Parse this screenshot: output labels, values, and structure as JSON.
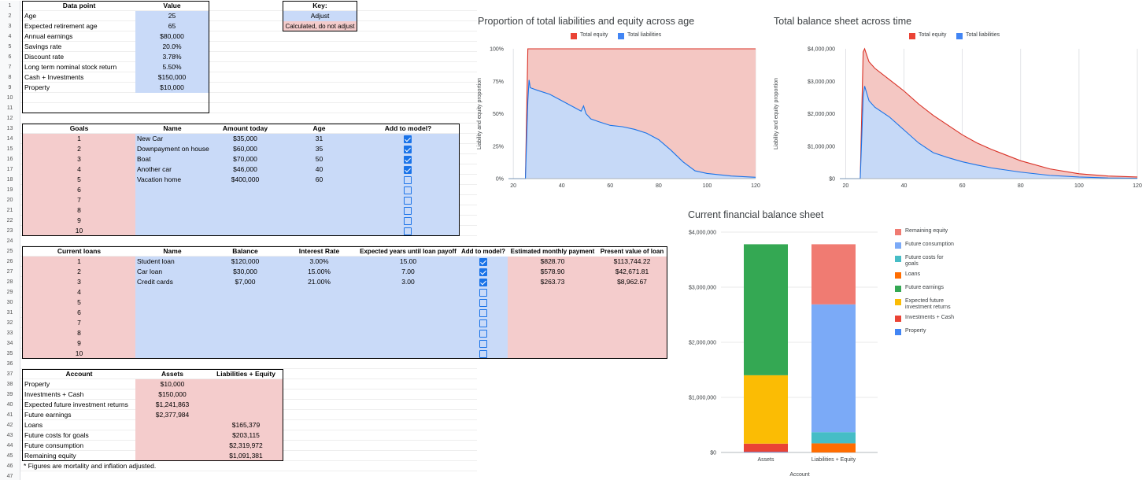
{
  "row_numbers": [
    "1",
    "2",
    "3",
    "4",
    "5",
    "6",
    "7",
    "8",
    "9",
    "10",
    "11",
    "12",
    "13",
    "14",
    "15",
    "16",
    "17",
    "18",
    "19",
    "20",
    "21",
    "22",
    "23",
    "24",
    "25",
    "26",
    "27",
    "28",
    "29",
    "30",
    "31",
    "32",
    "33",
    "34",
    "35",
    "36",
    "37",
    "38",
    "39",
    "40",
    "41",
    "42",
    "43",
    "44",
    "45",
    "46",
    "47"
  ],
  "inputs": {
    "header_point": "Data point",
    "header_value": "Value",
    "rows": [
      {
        "label": "Age",
        "value": "25"
      },
      {
        "label": "Expected retirement age",
        "value": "65"
      },
      {
        "label": "Annual earnings",
        "value": "$80,000"
      },
      {
        "label": "Savings rate",
        "value": "20.0%"
      },
      {
        "label": "Discount rate",
        "value": "3.78%"
      },
      {
        "label": "Long term nominal stock return",
        "value": "5.50%"
      },
      {
        "label": "Cash + Investments",
        "value": "$150,000"
      },
      {
        "label": "Property",
        "value": "$10,000"
      }
    ]
  },
  "key": {
    "title": "Key:",
    "adjust": "Adjust",
    "calculated": "Calculated, do not adjust"
  },
  "goals": {
    "headers": [
      "Goals",
      "Name",
      "Amount today",
      "Age",
      "Add to model?"
    ],
    "rows": [
      {
        "n": "1",
        "name": "New Car",
        "amount": "$35,000",
        "age": "31",
        "checked": true
      },
      {
        "n": "2",
        "name": "Downpayment on house",
        "amount": "$60,000",
        "age": "35",
        "checked": true
      },
      {
        "n": "3",
        "name": "Boat",
        "amount": "$70,000",
        "age": "50",
        "checked": true
      },
      {
        "n": "4",
        "name": "Another car",
        "amount": "$46,000",
        "age": "40",
        "checked": true
      },
      {
        "n": "5",
        "name": "Vacation home",
        "amount": "$400,000",
        "age": "60",
        "checked": false
      },
      {
        "n": "6",
        "name": "",
        "amount": "",
        "age": "",
        "checked": false
      },
      {
        "n": "7",
        "name": "",
        "amount": "",
        "age": "",
        "checked": false
      },
      {
        "n": "8",
        "name": "",
        "amount": "",
        "age": "",
        "checked": false
      },
      {
        "n": "9",
        "name": "",
        "amount": "",
        "age": "",
        "checked": false
      },
      {
        "n": "10",
        "name": "",
        "amount": "",
        "age": "",
        "checked": false
      }
    ]
  },
  "loans": {
    "headers": [
      "Current loans",
      "Name",
      "Balance",
      "Interest Rate",
      "Expected years until loan payoff",
      "Add to model?",
      "Estimated monthly payment",
      "Present value of loan"
    ],
    "rows": [
      {
        "n": "1",
        "name": "Student loan",
        "balance": "$120,000",
        "rate": "3.00%",
        "years": "15.00",
        "checked": true,
        "monthly": "$828.70",
        "pv": "$113,744.22"
      },
      {
        "n": "2",
        "name": "Car loan",
        "balance": "$30,000",
        "rate": "15.00%",
        "years": "7.00",
        "checked": true,
        "monthly": "$578.90",
        "pv": "$42,671.81"
      },
      {
        "n": "3",
        "name": "Credit cards",
        "balance": "$7,000",
        "rate": "21.00%",
        "years": "3.00",
        "checked": true,
        "monthly": "$263.73",
        "pv": "$8,962.67"
      },
      {
        "n": "4",
        "name": "",
        "balance": "",
        "rate": "",
        "years": "",
        "checked": false,
        "monthly": "",
        "pv": ""
      },
      {
        "n": "5",
        "name": "",
        "balance": "",
        "rate": "",
        "years": "",
        "checked": false,
        "monthly": "",
        "pv": ""
      },
      {
        "n": "6",
        "name": "",
        "balance": "",
        "rate": "",
        "years": "",
        "checked": false,
        "monthly": "",
        "pv": ""
      },
      {
        "n": "7",
        "name": "",
        "balance": "",
        "rate": "",
        "years": "",
        "checked": false,
        "monthly": "",
        "pv": ""
      },
      {
        "n": "8",
        "name": "",
        "balance": "",
        "rate": "",
        "years": "",
        "checked": false,
        "monthly": "",
        "pv": ""
      },
      {
        "n": "9",
        "name": "",
        "balance": "",
        "rate": "",
        "years": "",
        "checked": false,
        "monthly": "",
        "pv": ""
      },
      {
        "n": "10",
        "name": "",
        "balance": "",
        "rate": "",
        "years": "",
        "checked": false,
        "monthly": "",
        "pv": ""
      }
    ]
  },
  "balance": {
    "headers": [
      "Account",
      "Assets",
      "Liabilities + Equity"
    ],
    "rows": [
      {
        "account": "Property",
        "assets": "$10,000",
        "liab": ""
      },
      {
        "account": "Investments + Cash",
        "assets": "$150,000",
        "liab": ""
      },
      {
        "account": "Expected future investment returns",
        "assets": "$1,241,863",
        "liab": ""
      },
      {
        "account": "Future earnings",
        "assets": "$2,377,984",
        "liab": ""
      },
      {
        "account": "Loans",
        "assets": "",
        "liab": "$165,379"
      },
      {
        "account": "Future costs for goals",
        "assets": "",
        "liab": "$203,115"
      },
      {
        "account": "Future consumption",
        "assets": "",
        "liab": "$2,319,972"
      },
      {
        "account": "Remaining equity",
        "assets": "",
        "liab": "$1,091,381"
      }
    ],
    "footnote": "* Figures are mortality and inflation adjusted."
  },
  "colors": {
    "equity_red": "#f4c7c3",
    "liab_blue": "#c6d9f7",
    "line_red": "#d93025",
    "line_blue": "#1a73e8"
  },
  "chart_data": [
    {
      "type": "area",
      "title": "Proportion of total liabilities and equity across age",
      "ylabel": "Liability and equity proportion",
      "xlabel": "",
      "x_ticks": [
        "20",
        "40",
        "60",
        "80",
        "100",
        "120"
      ],
      "y_ticks": [
        "0%",
        "25%",
        "50%",
        "75%",
        "100%"
      ],
      "xlim": [
        18,
        120
      ],
      "ylim": [
        0,
        1
      ],
      "legend_position": "top",
      "series": [
        {
          "name": "Total equity",
          "color": "#d93025",
          "x": [
            18,
            25,
            26,
            120
          ],
          "y": [
            0,
            0,
            1,
            1
          ]
        },
        {
          "name": "Total liabilities",
          "color": "#4285f4",
          "x": [
            18,
            25,
            26,
            26.5,
            27,
            30,
            35,
            40,
            45,
            48,
            49,
            50,
            51,
            52,
            55,
            60,
            65,
            70,
            75,
            80,
            85,
            90,
            95,
            100,
            110,
            120
          ],
          "y": [
            0,
            0,
            0.6,
            0.76,
            0.7,
            0.68,
            0.65,
            0.6,
            0.55,
            0.52,
            0.56,
            0.5,
            0.48,
            0.46,
            0.44,
            0.41,
            0.4,
            0.38,
            0.35,
            0.3,
            0.22,
            0.13,
            0.06,
            0.04,
            0.02,
            0.01
          ]
        }
      ]
    },
    {
      "type": "area",
      "title": "Total balance sheet across time",
      "ylabel": "Liability and equity proportion",
      "xlabel": "",
      "x_ticks": [
        "20",
        "40",
        "60",
        "80",
        "100",
        "120"
      ],
      "y_ticks": [
        "$0",
        "$1,000,000",
        "$2,000,000",
        "$3,000,000",
        "$4,000,000"
      ],
      "xlim": [
        18,
        120
      ],
      "ylim": [
        0,
        4000000
      ],
      "legend_position": "top",
      "series": [
        {
          "name": "Total equity",
          "color": "#d93025",
          "x": [
            18,
            25,
            26,
            26.5,
            28,
            30,
            35,
            40,
            45,
            50,
            55,
            60,
            65,
            70,
            80,
            90,
            100,
            110,
            120
          ],
          "y": [
            0,
            0,
            3900000,
            4000000,
            3600000,
            3400000,
            3050000,
            2700000,
            2300000,
            1950000,
            1650000,
            1350000,
            1100000,
            900000,
            550000,
            300000,
            150000,
            80000,
            50000
          ]
        },
        {
          "name": "Total liabilities",
          "color": "#1a73e8",
          "x": [
            18,
            25,
            26,
            26.5,
            28,
            30,
            35,
            40,
            45,
            50,
            55,
            60,
            65,
            70,
            80,
            90,
            100,
            110,
            120
          ],
          "y": [
            0,
            0,
            2500000,
            2850000,
            2400000,
            2200000,
            1900000,
            1500000,
            1100000,
            800000,
            650000,
            520000,
            420000,
            330000,
            200000,
            100000,
            50000,
            20000,
            10000
          ]
        }
      ]
    },
    {
      "type": "bar",
      "stacked": true,
      "title": "Current financial balance sheet",
      "xlabel": "Account",
      "ylabel": "",
      "categories": [
        "Assets",
        "Liabilities + Equity"
      ],
      "y_ticks": [
        "$0",
        "$1,000,000",
        "$2,000,000",
        "$3,000,000",
        "$4,000,000"
      ],
      "ylim": [
        0,
        4000000
      ],
      "legend_position": "right",
      "series": [
        {
          "name": "Property",
          "color": "#4285f4",
          "values": [
            10000,
            0
          ]
        },
        {
          "name": "Investments + Cash",
          "color": "#ea4335",
          "values": [
            150000,
            0
          ]
        },
        {
          "name": "Expected future investment returns",
          "color": "#fbbc04",
          "values": [
            1241863,
            0
          ]
        },
        {
          "name": "Future earnings",
          "color": "#34a853",
          "values": [
            2377984,
            0
          ]
        },
        {
          "name": "Loans",
          "color": "#ff6d01",
          "values": [
            0,
            165379
          ]
        },
        {
          "name": "Future costs for goals",
          "color": "#46bdc6",
          "values": [
            0,
            203115
          ]
        },
        {
          "name": "Future consumption",
          "color": "#7baaf7",
          "values": [
            0,
            2319972
          ]
        },
        {
          "name": "Remaining equity",
          "color": "#f07b72",
          "values": [
            0,
            1091381
          ]
        }
      ],
      "legend_order": [
        "Remaining equity",
        "Future consumption",
        "Future costs for goals",
        "Loans",
        "Future earnings",
        "Expected future investment returns",
        "Investments + Cash",
        "Property"
      ],
      "legend_labels": [
        "Remaining equity",
        "Future consumption",
        "Future costs for\ngoals",
        "Loans",
        "Future earnings",
        "Expected future\ninvestment returns",
        "Investments + Cash",
        "Property"
      ]
    }
  ]
}
